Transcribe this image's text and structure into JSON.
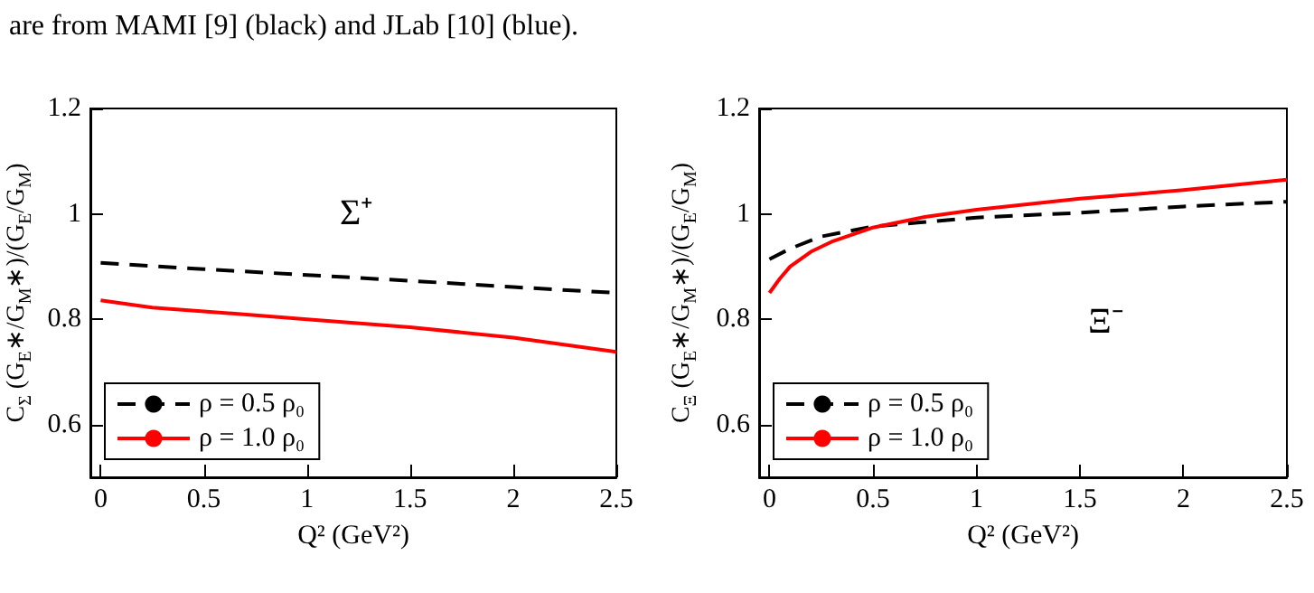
{
  "chart_data": [
    {
      "type": "line",
      "xlabel": "Q² (GeV²)",
      "ylabel": "C$_{Σ}$ (G$_{E}$∗/G$_{M}$∗)/(G$_{E}$/G$_{M}$)",
      "annotations": [
        "are from MAMI [9] (black) and JLab [10] (blue).",
        "Σ⁺"
      ],
      "x": [
        0,
        0.25,
        0.5,
        1,
        1.5,
        2,
        2.5
      ],
      "xlim": [
        -0.05,
        2.5
      ],
      "xticks": [
        0,
        0.5,
        1,
        1.5,
        2,
        2.5
      ],
      "ylim": [
        0.5,
        1.2
      ],
      "yticks": [
        0.6,
        0.8,
        1,
        1.2
      ],
      "grid": false,
      "legend": "bottom left",
      "marker": "none",
      "series": [
        {
          "name": "ρ = 0.5 ρ₀",
          "color": "#000000",
          "line_style": "dashed",
          "values": [
            0.907,
            0.901,
            0.895,
            0.884,
            0.873,
            0.861,
            0.85
          ]
        },
        {
          "name": "ρ = 1.0 ρ₀",
          "color": "#ff0000",
          "line_style": "solid",
          "values": [
            0.836,
            0.822,
            0.815,
            0.8,
            0.785,
            0.765,
            0.738
          ]
        }
      ]
    },
    {
      "type": "line",
      "xlabel": "Q² (GeV²)",
      "ylabel": "C$_{Ξ}$ (G$_{E}$∗/G$_{M}$∗)/(G$_{E}$/G$_{M}$)",
      "annotations": [
        "Ξ⁻"
      ],
      "xlim": [
        -0.05,
        2.5
      ],
      "xticks": [
        0,
        0.5,
        1,
        1.5,
        2,
        2.5
      ],
      "ylim": [
        0.5,
        1.2
      ],
      "yticks": [
        0.6,
        0.8,
        1,
        1.2
      ],
      "grid": false,
      "legend": "bottom left",
      "marker": "none",
      "series": [
        {
          "name": "ρ = 0.5 ρ₀",
          "color": "#000000",
          "line_style": "dashed",
          "x": [
            0,
            0.1,
            0.25,
            0.5,
            1,
            1.5,
            2,
            2.5
          ],
          "values": [
            0.914,
            0.934,
            0.957,
            0.976,
            0.993,
            1.002,
            1.014,
            1.023
          ]
        },
        {
          "name": "ρ = 1.0 ρ₀",
          "color": "#ff0000",
          "line_style": "solid",
          "x": [
            0,
            0.05,
            0.1,
            0.2,
            0.3,
            0.5,
            0.75,
            1,
            1.5,
            2,
            2.5
          ],
          "values": [
            0.85,
            0.877,
            0.9,
            0.928,
            0.947,
            0.974,
            0.994,
            1.008,
            1.029,
            1.045,
            1.065
          ]
        }
      ]
    }
  ]
}
